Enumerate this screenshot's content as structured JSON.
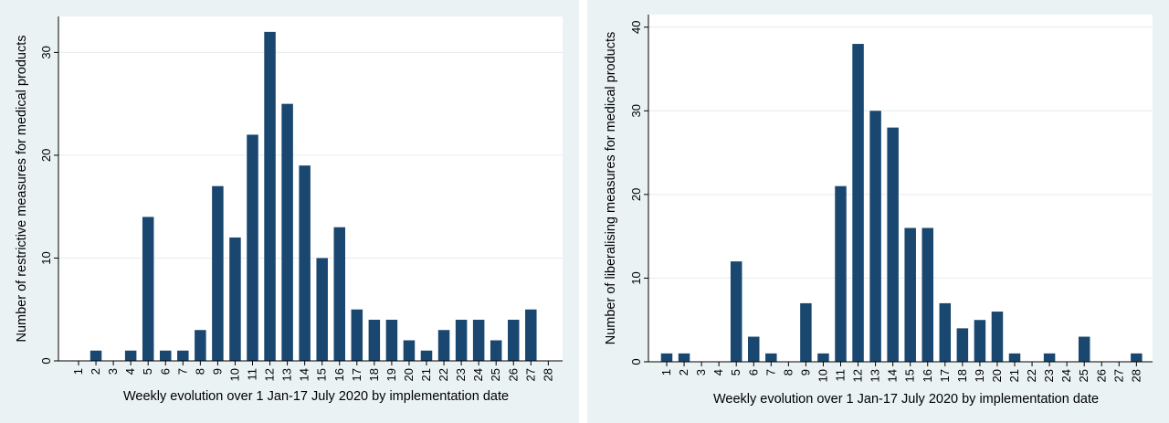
{
  "chart_data": [
    {
      "type": "bar",
      "xlabel": "Weekly evolution over 1 Jan-17 July 2020 by implementation date",
      "ylabel": "Number of restrictive measures for medical products",
      "categories": [
        "1",
        "2",
        "3",
        "4",
        "5",
        "6",
        "7",
        "8",
        "9",
        "10",
        "11",
        "12",
        "13",
        "14",
        "15",
        "16",
        "17",
        "18",
        "19",
        "20",
        "21",
        "22",
        "23",
        "24",
        "25",
        "26",
        "27",
        "28"
      ],
      "values": [
        0,
        1,
        0,
        1,
        14,
        1,
        1,
        3,
        17,
        12,
        22,
        32,
        25,
        19,
        10,
        13,
        5,
        4,
        4,
        2,
        1,
        3,
        4,
        4,
        2,
        4,
        5,
        0
      ],
      "yticks": [
        0,
        10,
        20,
        30
      ],
      "ylim": [
        0,
        33.5
      ],
      "grid": true,
      "bar_color": "#1a476f"
    },
    {
      "type": "bar",
      "xlabel": "Weekly evolution over 1 Jan-17 July 2020 by implementation date",
      "ylabel": "Number of liberalising measures for medical products",
      "categories": [
        "1",
        "2",
        "3",
        "4",
        "5",
        "6",
        "7",
        "8",
        "9",
        "10",
        "11",
        "12",
        "13",
        "14",
        "15",
        "16",
        "17",
        "18",
        "19",
        "20",
        "21",
        "22",
        "23",
        "24",
        "25",
        "26",
        "27",
        "28"
      ],
      "values": [
        1,
        1,
        0,
        0,
        12,
        3,
        1,
        0,
        7,
        1,
        21,
        38,
        30,
        28,
        16,
        16,
        7,
        4,
        5,
        6,
        1,
        0,
        1,
        0,
        3,
        0,
        0,
        1
      ],
      "yticks": [
        0,
        10,
        20,
        30,
        40
      ],
      "ylim": [
        0,
        41.5
      ],
      "grid": true,
      "bar_color": "#1a476f"
    }
  ]
}
